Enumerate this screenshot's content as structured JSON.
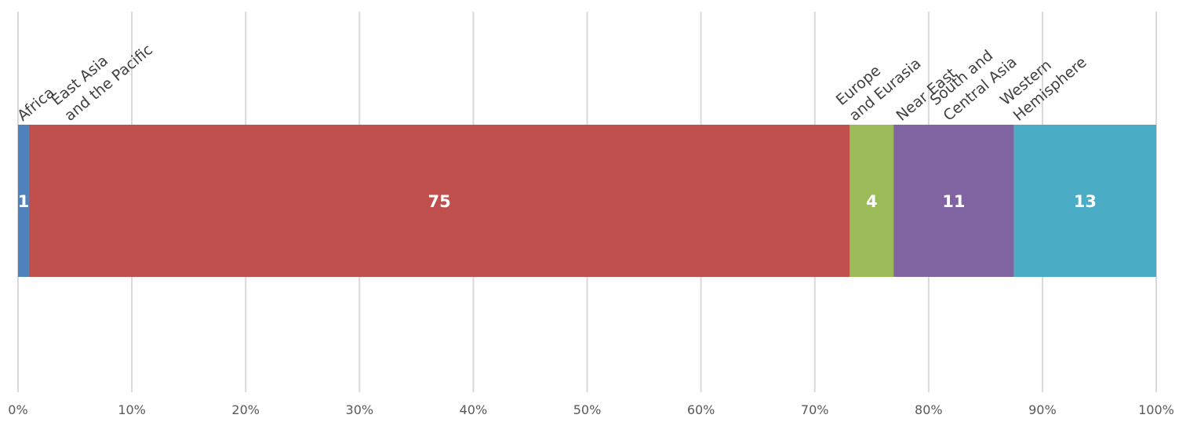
{
  "chart_data": {
    "type": "bar",
    "orientation": "horizontal",
    "stacked": "percent",
    "title": "",
    "xlabel": "",
    "ylabel": "",
    "xlim": [
      0,
      100
    ],
    "x_ticks": [
      "0%",
      "10%",
      "20%",
      "30%",
      "40%",
      "50%",
      "60%",
      "70%",
      "80%",
      "90%",
      "100%"
    ],
    "grid": true,
    "series": [
      {
        "name": "Africa",
        "label_lines": [
          "Africa"
        ],
        "value": 1,
        "data_label": "1",
        "color": "#4f81bd"
      },
      {
        "name": "East Asia and the Pacific",
        "label_lines": [
          "East Asia",
          "and the Pacific"
        ],
        "value": 75,
        "data_label": "75",
        "color": "#c0504d"
      },
      {
        "name": "Europe and Eurasia",
        "label_lines": [
          "Europe",
          "and Eurasia"
        ],
        "value": 0,
        "data_label": "",
        "color": "#f79646"
      },
      {
        "name": "Near East",
        "label_lines": [
          "Near  East"
        ],
        "value": 0,
        "data_label": "",
        "color": "#8064a2"
      },
      {
        "name": "South and Central Asia",
        "label_lines": [
          "South and",
          "Central Asia"
        ],
        "value": 4,
        "data_label": "4",
        "color": "#9bbb59"
      },
      {
        "name": "",
        "label_lines": [],
        "value": 11,
        "data_label": "11",
        "color": "#8064a2"
      },
      {
        "name": "Western Hemisphere",
        "label_lines": [
          "Western",
          "Hemisphere"
        ],
        "value": 13,
        "data_label": "13",
        "color": "#4bacc6"
      }
    ]
  }
}
